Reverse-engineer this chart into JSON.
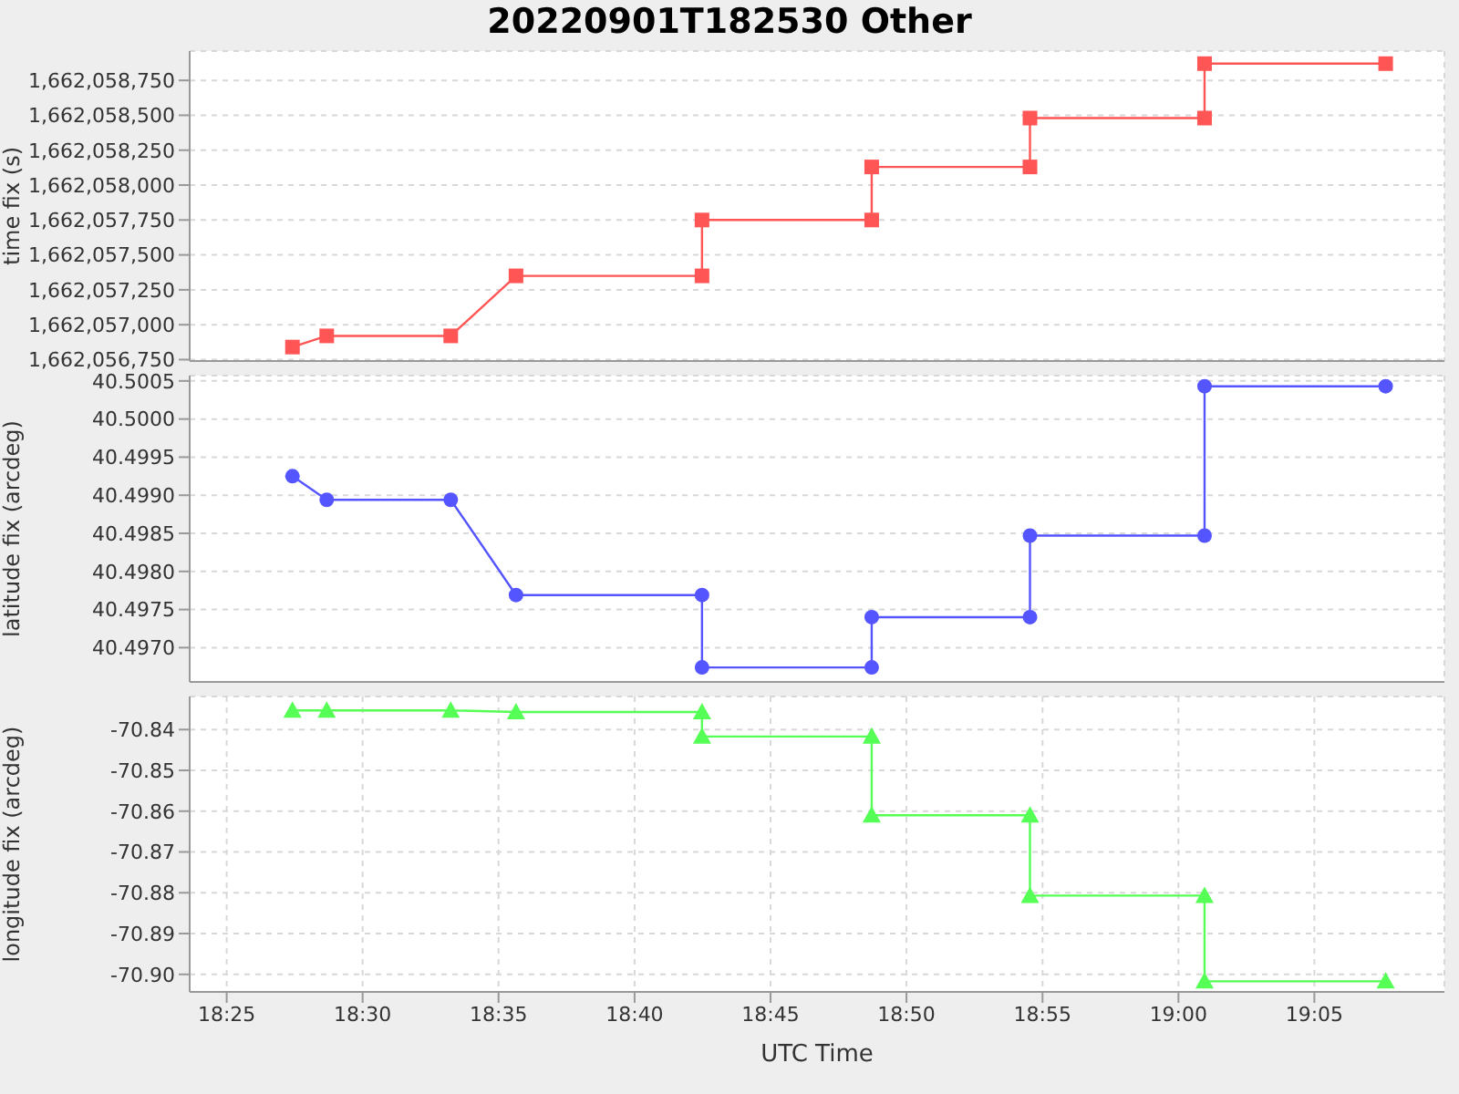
{
  "chart_data": [
    {
      "type": "line",
      "title": "20220901T182530 Other",
      "ylabel": "time fix (s)",
      "marker": "square",
      "grid": true,
      "tick_labels": "y",
      "x": [
        18.457,
        18.478,
        18.554,
        18.594,
        18.708,
        18.708,
        18.812,
        18.812,
        18.909,
        18.909,
        19.016,
        19.016,
        19.127
      ],
      "series": [
        {
          "color": "#ff5555",
          "values": [
            1662056840,
            1662056920,
            1662056920,
            1662057350,
            1662057350,
            1662057750,
            1662057750,
            1662058130,
            1662058130,
            1662058480,
            1662058480,
            1662058870,
            1662058870
          ]
        }
      ],
      "xlim": [
        18.394,
        19.163
      ],
      "xticks": [
        {
          "value": 18.4167,
          "label": null
        },
        {
          "value": 18.5,
          "label": null
        },
        {
          "value": 18.5833,
          "label": null
        },
        {
          "value": 18.6667,
          "label": null
        },
        {
          "value": 18.75,
          "label": null
        },
        {
          "value": 18.8333,
          "label": null
        },
        {
          "value": 18.9167,
          "label": null
        },
        {
          "value": 19.0,
          "label": null
        },
        {
          "value": 19.0833,
          "label": null
        }
      ],
      "ylim": [
        1662056740,
        1662058960
      ],
      "yticks": [
        {
          "value": 1662056750,
          "label": "1,662,056,750"
        },
        {
          "value": 1662057000,
          "label": "1,662,057,000"
        },
        {
          "value": 1662057250,
          "label": "1,662,057,250"
        },
        {
          "value": 1662057500,
          "label": "1,662,057,500"
        },
        {
          "value": 1662057750,
          "label": "1,662,057,750"
        },
        {
          "value": 1662058000,
          "label": "1,662,058,000"
        },
        {
          "value": 1662058250,
          "label": "1,662,058,250"
        },
        {
          "value": 1662058500,
          "label": "1,662,058,500"
        },
        {
          "value": 1662058750,
          "label": "1,662,058,750"
        }
      ]
    },
    {
      "type": "line",
      "ylabel": "latitude fix (arcdeg)",
      "marker": "circle",
      "grid": true,
      "tick_labels": "y",
      "x": [
        18.457,
        18.478,
        18.554,
        18.594,
        18.708,
        18.708,
        18.812,
        18.812,
        18.909,
        18.909,
        19.016,
        19.016,
        19.127
      ],
      "series": [
        {
          "color": "#5555ff",
          "values": [
            40.49925,
            40.49894,
            40.49894,
            40.49769,
            40.49769,
            40.49674,
            40.49674,
            40.4974,
            40.4974,
            40.49847,
            40.49847,
            40.50043,
            40.50043
          ]
        }
      ],
      "xlim": [
        18.394,
        19.163
      ],
      "xticks": [
        {
          "value": 18.4167,
          "label": null
        },
        {
          "value": 18.5,
          "label": null
        },
        {
          "value": 18.5833,
          "label": null
        },
        {
          "value": 18.6667,
          "label": null
        },
        {
          "value": 18.75,
          "label": null
        },
        {
          "value": 18.8333,
          "label": null
        },
        {
          "value": 18.9167,
          "label": null
        },
        {
          "value": 19.0,
          "label": null
        },
        {
          "value": 19.0833,
          "label": null
        }
      ],
      "ylim": [
        40.49655,
        40.50057
      ],
      "yticks": [
        {
          "value": 40.497,
          "label": "40.4970"
        },
        {
          "value": 40.4975,
          "label": "40.4975"
        },
        {
          "value": 40.498,
          "label": "40.4980"
        },
        {
          "value": 40.4985,
          "label": "40.4985"
        },
        {
          "value": 40.499,
          "label": "40.4990"
        },
        {
          "value": 40.4995,
          "label": "40.4995"
        },
        {
          "value": 40.5,
          "label": "40.5000"
        },
        {
          "value": 40.5005,
          "label": "40.5005"
        }
      ]
    },
    {
      "type": "line",
      "ylabel": "longitude fix (arcdeg)",
      "xlabel": "UTC Time",
      "marker": "triangle",
      "grid": true,
      "x": [
        18.457,
        18.478,
        18.554,
        18.594,
        18.708,
        18.708,
        18.812,
        18.812,
        18.909,
        18.909,
        19.016,
        19.016,
        19.127
      ],
      "series": [
        {
          "color": "#55ff55",
          "values": [
            -70.8353,
            -70.8353,
            -70.8353,
            -70.8357,
            -70.8357,
            -70.8417,
            -70.8417,
            -70.861,
            -70.861,
            -70.8807,
            -70.8807,
            -70.9017,
            -70.9017
          ]
        }
      ],
      "xlim": [
        18.394,
        19.163
      ],
      "xticks": [
        {
          "value": 18.4167,
          "label": "18:25"
        },
        {
          "value": 18.5,
          "label": "18:30"
        },
        {
          "value": 18.5833,
          "label": "18:35"
        },
        {
          "value": 18.6667,
          "label": "18:40"
        },
        {
          "value": 18.75,
          "label": "18:45"
        },
        {
          "value": 18.8333,
          "label": "18:50"
        },
        {
          "value": 18.9167,
          "label": "18:55"
        },
        {
          "value": 19.0,
          "label": "19:00"
        },
        {
          "value": 19.0833,
          "label": "19:05"
        }
      ],
      "ylim": [
        -70.9043,
        -70.8319
      ],
      "yticks": [
        {
          "value": -70.9,
          "label": "-70.90"
        },
        {
          "value": -70.89,
          "label": "-70.89"
        },
        {
          "value": -70.88,
          "label": "-70.88"
        },
        {
          "value": -70.87,
          "label": "-70.87"
        },
        {
          "value": -70.86,
          "label": "-70.86"
        },
        {
          "value": -70.85,
          "label": "-70.85"
        },
        {
          "value": -70.84,
          "label": "-70.84"
        }
      ]
    }
  ]
}
